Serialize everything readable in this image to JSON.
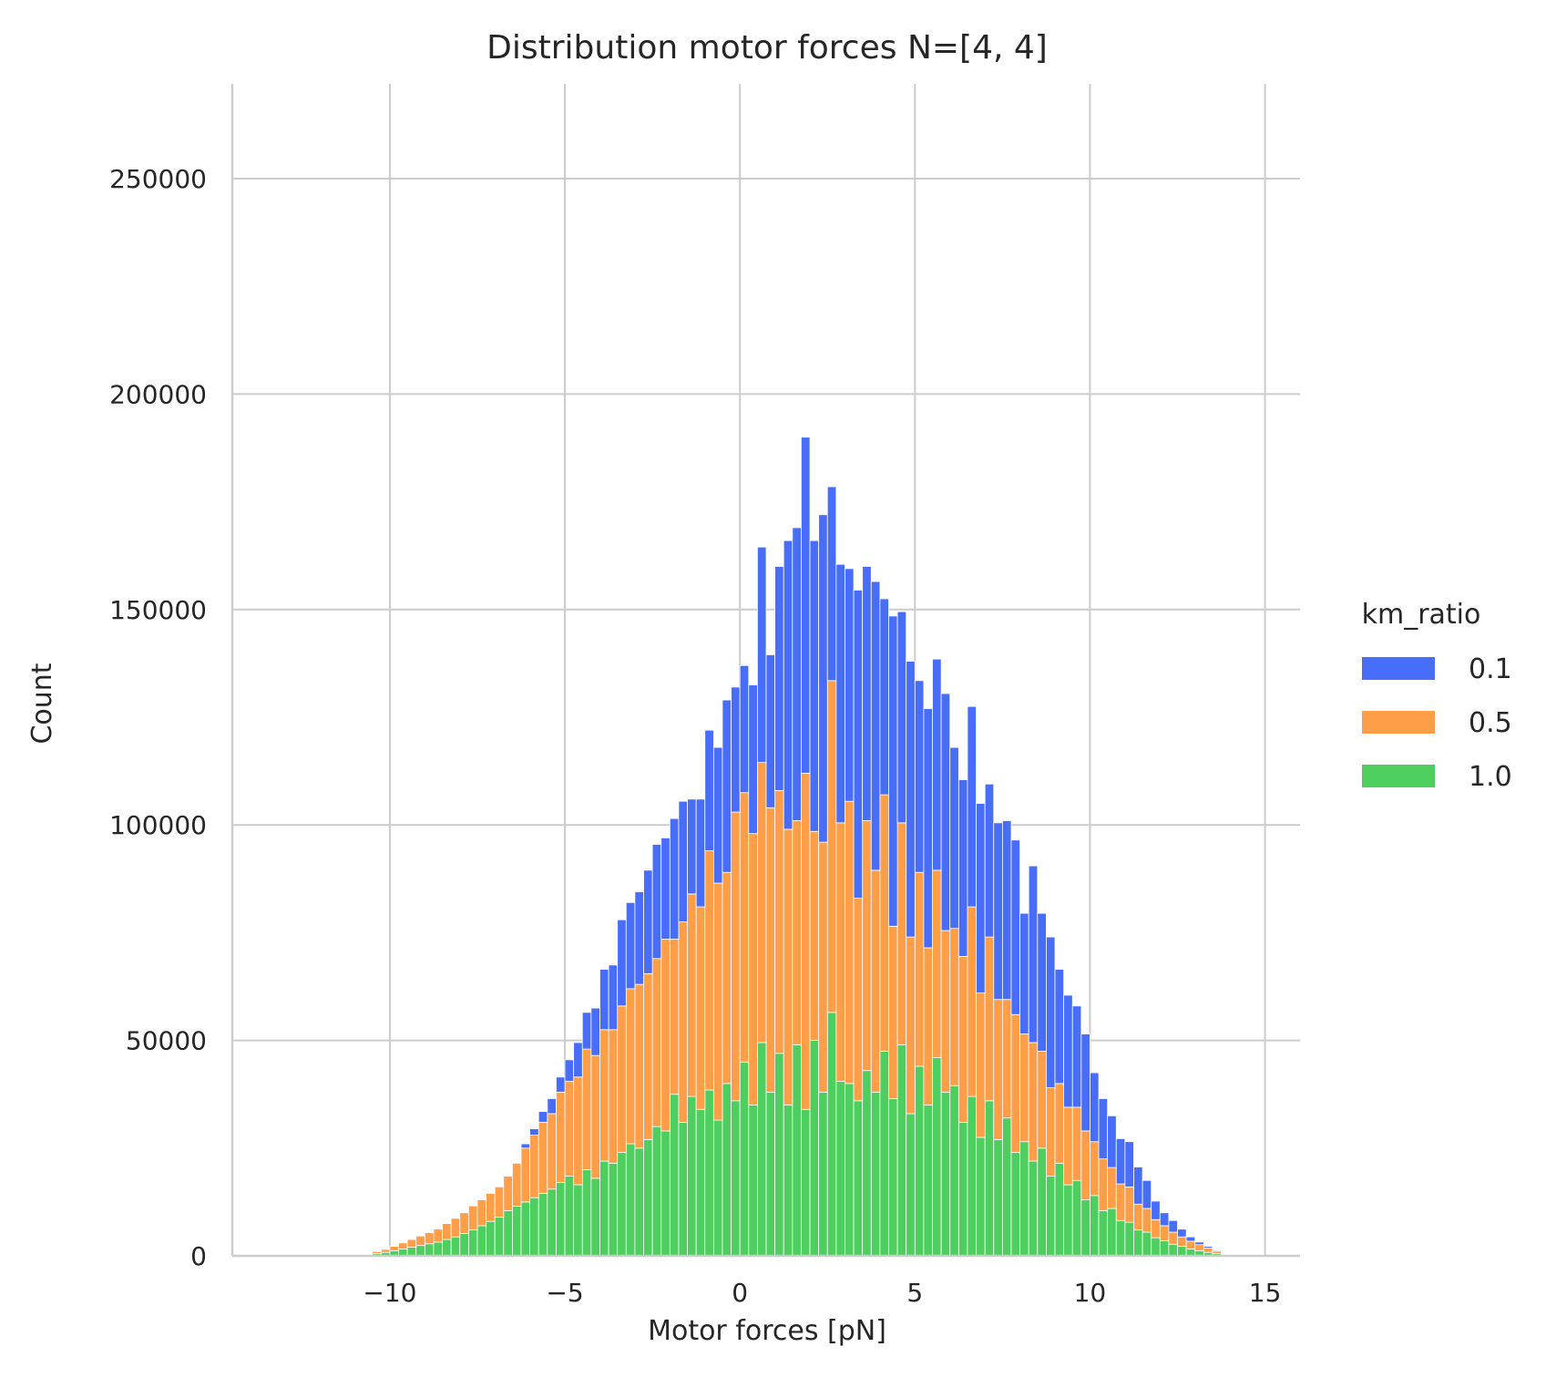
{
  "chart_data": {
    "type": "bar",
    "stacked": true,
    "title": "Distribution motor forces N=[4, 4]",
    "xlabel": "Motor forces [pN]",
    "ylabel": "Count",
    "xlim": [
      -14.5,
      16
    ],
    "ylim": [
      0,
      272000
    ],
    "x_ticks": [
      -10,
      -5,
      0,
      5,
      10,
      15
    ],
    "x_tick_labels": [
      "−10",
      "−5",
      "0",
      "5",
      "10",
      "15"
    ],
    "y_ticks": [
      0,
      50000,
      100000,
      150000,
      200000,
      250000
    ],
    "y_tick_labels": [
      "0",
      "50000",
      "100000",
      "150000",
      "200000",
      "250000"
    ],
    "grid": true,
    "legend_title": "km_ratio",
    "legend_position": "right",
    "bin_start": -10.5,
    "bin_width": 0.25,
    "series": [
      {
        "name": "1.0",
        "color": "#4dce5e",
        "values": [
          500,
          800,
          1200,
          1600,
          2000,
          2400,
          2800,
          3200,
          3800,
          4400,
          5200,
          6000,
          7000,
          8000,
          9000,
          10500,
          11500,
          12500,
          13500,
          14500,
          15500,
          17000,
          18500,
          16500,
          20000,
          18000,
          22000,
          21500,
          24000,
          26000,
          25000,
          27000,
          30000,
          29000,
          37500,
          31000,
          37000,
          34000,
          38500,
          31500,
          40000,
          36000,
          45000,
          35000,
          49500,
          38000,
          47000,
          35000,
          49000,
          34000,
          50000,
          38000,
          56500,
          40500,
          40000,
          36000,
          43000,
          38000,
          47500,
          36500,
          49000,
          33000,
          44000,
          35000,
          46000,
          38000,
          39500,
          31000,
          37000,
          27500,
          36000,
          27000,
          32000,
          24000,
          26500,
          22000,
          25000,
          18500,
          21500,
          16500,
          17500,
          13000,
          14000,
          10500,
          11000,
          8200,
          7800,
          6000,
          5500,
          4200,
          3500,
          2700,
          2200,
          1600,
          1200,
          800,
          500
        ]
      },
      {
        "name": "0.5",
        "color": "#fe9e48",
        "values": [
          500,
          700,
          1000,
          1400,
          1800,
          2200,
          2600,
          3000,
          3700,
          4300,
          4800,
          5600,
          6000,
          6500,
          7000,
          8000,
          10000,
          12500,
          14500,
          16500,
          17500,
          21000,
          22000,
          25000,
          28000,
          28500,
          30500,
          31000,
          34000,
          36000,
          38000,
          38500,
          39000,
          44500,
          36000,
          46500,
          47000,
          47000,
          55500,
          55000,
          49000,
          67000,
          62500,
          63000,
          65000,
          66000,
          61000,
          64000,
          52000,
          78000,
          48500,
          58000,
          77000,
          60000,
          65500,
          47000,
          58000,
          51500,
          59500,
          40000,
          51500,
          41000,
          45000,
          36500,
          43500,
          37500,
          36500,
          38500,
          44000,
          33500,
          38000,
          32500,
          27500,
          32000,
          25000,
          27500,
          22500,
          20500,
          18500,
          18000,
          17000,
          16000,
          12500,
          12000,
          9500,
          8500,
          8200,
          6000,
          5500,
          4200,
          3500,
          2800,
          2200,
          1800,
          1400,
          1000,
          600
        ]
      },
      {
        "name": "0.1",
        "color": "#476df9",
        "values": [
          0,
          0,
          0,
          0,
          0,
          0,
          0,
          0,
          0,
          0,
          0,
          0,
          0,
          0,
          0,
          0,
          0,
          1000,
          1500,
          2500,
          3500,
          3500,
          5000,
          8000,
          8500,
          11000,
          14000,
          15000,
          20000,
          20000,
          21500,
          24000,
          26500,
          23500,
          28000,
          28000,
          22000,
          25000,
          28000,
          31500,
          40000,
          29000,
          29500,
          34500,
          50000,
          35500,
          52000,
          67000,
          68000,
          78000,
          67500,
          76000,
          45000,
          60000,
          54000,
          71500,
          59000,
          67000,
          45500,
          72000,
          49000,
          64000,
          44500,
          55500,
          49000,
          55000,
          42000,
          41000,
          46500,
          44000,
          35500,
          41000,
          41500,
          40500,
          28000,
          41000,
          32000,
          35000,
          26500,
          26000,
          23500,
          22500,
          16000,
          14000,
          12000,
          10500,
          10500,
          8600,
          6500,
          4300,
          3000,
          2700,
          1800,
          1000,
          600,
          400,
          200
        ]
      }
    ]
  }
}
